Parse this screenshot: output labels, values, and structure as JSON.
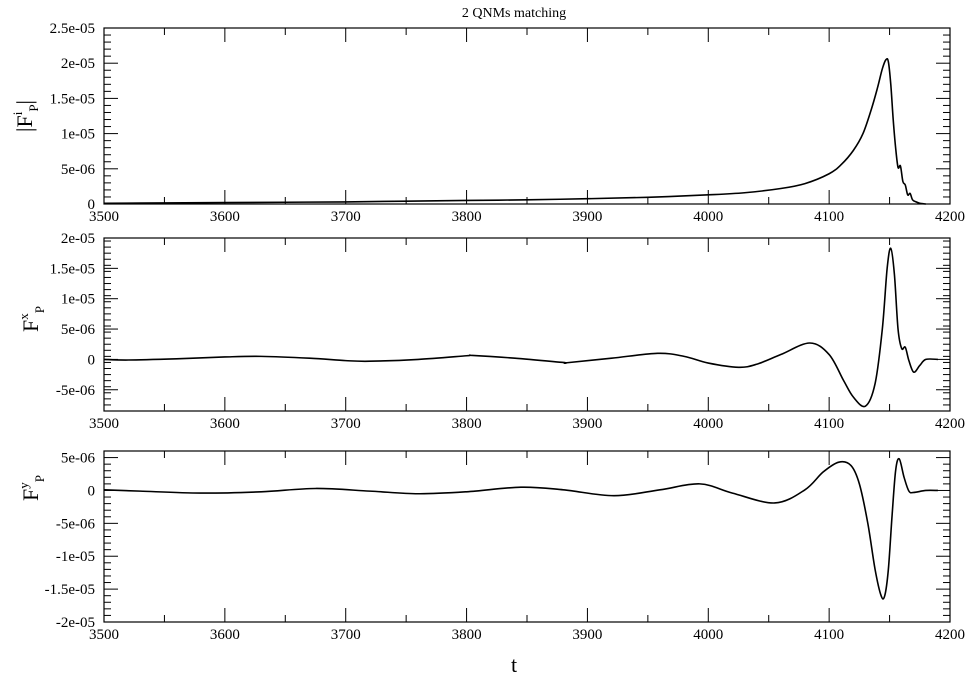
{
  "title": "2 QNMs matching",
  "xlabel": "t",
  "chart_data": [
    {
      "type": "line",
      "title": "2 QNMs matching",
      "ylabel": {
        "bar_left": "|",
        "main": "F",
        "sup": "i",
        "sub": "P",
        "bar_right": "|"
      },
      "xlim": [
        3500,
        4200
      ],
      "ylim": [
        0,
        2.5e-05
      ],
      "x_ticks": [
        3500,
        3600,
        3700,
        3800,
        3900,
        4000,
        4100,
        4200
      ],
      "y_ticks": [
        0,
        5e-06,
        1e-05,
        1.5e-05,
        2e-05,
        2.5e-05
      ],
      "x_tick_labels": [
        "3500",
        "3600",
        "3700",
        "3800",
        "3900",
        "4000",
        "4100",
        "4200"
      ],
      "y_tick_labels": [
        "0",
        "5e-06",
        "1e-05",
        "1.5e-05",
        "2e-05",
        "2.5e-05"
      ],
      "series": [
        {
          "x": [
            3500,
            3550,
            3600,
            3650,
            3700,
            3750,
            3800,
            3850,
            3900,
            3950,
            4000,
            4030,
            4060,
            4080,
            4100,
            4110,
            4120,
            4128,
            4135,
            4140,
            4144,
            4147,
            4149,
            4151,
            4153,
            4155,
            4157,
            4159,
            4161,
            4163,
            4165,
            4167,
            4169,
            4172,
            4175,
            4180
          ],
          "y": [
            1e-07,
            1.5e-07,
            2e-07,
            2.5e-07,
            3e-07,
            4e-07,
            5e-07,
            6e-07,
            7.5e-07,
            9.5e-07,
            1.3e-06,
            1.6e-06,
            2.2e-06,
            2.9e-06,
            4.3e-06,
            5.6e-06,
            7.6e-06,
            1e-05,
            1.35e-05,
            1.65e-05,
            1.92e-05,
            2.05e-05,
            2.02e-05,
            1.7e-05,
            1.2e-05,
            8e-06,
            5.2e-06,
            5.4e-06,
            3.2e-06,
            2.7e-06,
            1.3e-06,
            1.5e-06,
            6e-07,
            3e-07,
            1e-07,
            0
          ]
        }
      ]
    },
    {
      "type": "line",
      "ylabel": {
        "main": "F",
        "sup": "x",
        "sub": "P"
      },
      "xlim": [
        3500,
        4200
      ],
      "ylim": [
        -8.5e-06,
        2e-05
      ],
      "x_ticks": [
        3500,
        3600,
        3700,
        3800,
        3900,
        4000,
        4100,
        4200
      ],
      "y_ticks": [
        -5e-06,
        0,
        5e-06,
        1e-05,
        1.5e-05,
        2e-05
      ],
      "x_tick_labels": [
        "3500",
        "3600",
        "3700",
        "3800",
        "3900",
        "4000",
        "4100",
        "4200"
      ],
      "y_tick_labels": [
        "-5e-06",
        "0",
        "5e-06",
        "1e-05",
        "1.5e-05",
        "2e-05"
      ],
      "series": [
        {
          "x": [
            3500,
            3520,
            3560,
            3600,
            3630,
            3670,
            3700,
            3720,
            3760,
            3800,
            3805,
            3840,
            3880,
            3883,
            3920,
            3958,
            3980,
            4000,
            4025,
            4040,
            4060,
            4084,
            4100,
            4112,
            4120,
            4130,
            4138,
            4144,
            4148,
            4151,
            4154,
            4157,
            4160,
            4163,
            4166,
            4170,
            4175,
            4180,
            4190
          ],
          "y": [
            0,
            -1e-07,
            1e-07,
            4e-07,
            5e-07,
            2e-07,
            -2e-07,
            -3e-07,
            0,
            6e-07,
            6.5e-07,
            2e-07,
            -5e-07,
            -5.5e-07,
            2e-07,
            1e-06,
            5e-07,
            -6e-07,
            -1.3e-06,
            -8e-07,
            8e-07,
            2.7e-06,
            8e-07,
            -3.5e-06,
            -6.2e-06,
            -7.7e-06,
            -4e-06,
            5e-06,
            1.5e-05,
            1.83e-05,
            1.4e-05,
            5e-06,
            1.8e-06,
            2e-06,
            -2e-07,
            -2.1e-06,
            -1e-06,
            0,
            0
          ]
        }
      ]
    },
    {
      "type": "line",
      "ylabel": {
        "main": "F",
        "sup": "y",
        "sub": "P"
      },
      "xlim": [
        3500,
        4200
      ],
      "ylim": [
        -2e-05,
        6e-06
      ],
      "x_ticks": [
        3500,
        3600,
        3700,
        3800,
        3900,
        4000,
        4100,
        4200
      ],
      "y_ticks": [
        -2e-05,
        -1.5e-05,
        -1e-05,
        -5e-06,
        0,
        5e-06
      ],
      "x_tick_labels": [
        "3500",
        "3600",
        "3700",
        "3800",
        "3900",
        "4000",
        "4100",
        "4200"
      ],
      "y_tick_labels": [
        "-2e-05",
        "-1.5e-05",
        "-1e-05",
        "-5e-06",
        "0",
        "5e-06"
      ],
      "series": [
        {
          "x": [
            3500,
            3530,
            3580,
            3630,
            3675,
            3720,
            3760,
            3800,
            3845,
            3880,
            3922,
            3960,
            3993,
            4020,
            4055,
            4080,
            4095,
            4108,
            4118,
            4125,
            4132,
            4138,
            4143,
            4146,
            4149,
            4152,
            4155,
            4158,
            4162,
            4166,
            4170,
            4180,
            4190
          ],
          "y": [
            1e-07,
            -1e-07,
            -4e-07,
            -2e-07,
            3e-07,
            -1e-07,
            -5e-07,
            -2e-07,
            5e-07,
            1e-07,
            -8e-07,
            1e-07,
            1e-06,
            -4e-07,
            -1.9e-06,
            1e-07,
            2.8e-06,
            4.3e-06,
            3.8e-06,
            1e-06,
            -5e-06,
            -1.2e-05,
            -1.6e-05,
            -1.6e-05,
            -1.2e-05,
            -4e-06,
            3e-06,
            4.8e-06,
            2e-06,
            -1e-07,
            -3e-07,
            0,
            0
          ]
        }
      ]
    }
  ]
}
